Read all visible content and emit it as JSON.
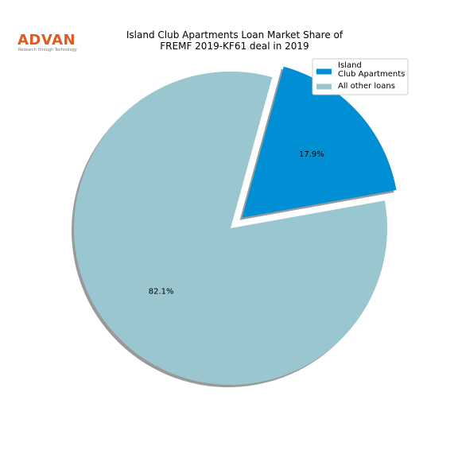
{
  "chart_data": {
    "type": "pie",
    "title": "Island Club Apartments Loan Market Share of\nFREMF 2019-KF61 deal in 2019",
    "categories": [
      "Island\nClub Apartments",
      "All other loans"
    ],
    "values": [
      17.9,
      82.1
    ],
    "value_labels": [
      "17.9%",
      "82.1%"
    ],
    "colors": [
      "#008fd5",
      "#99c6cf"
    ],
    "explode": [
      0.1,
      0
    ],
    "shadow": true,
    "legend": "upper right"
  },
  "logo": {
    "name": "ADVAN",
    "tagline": "Research through Technology"
  }
}
